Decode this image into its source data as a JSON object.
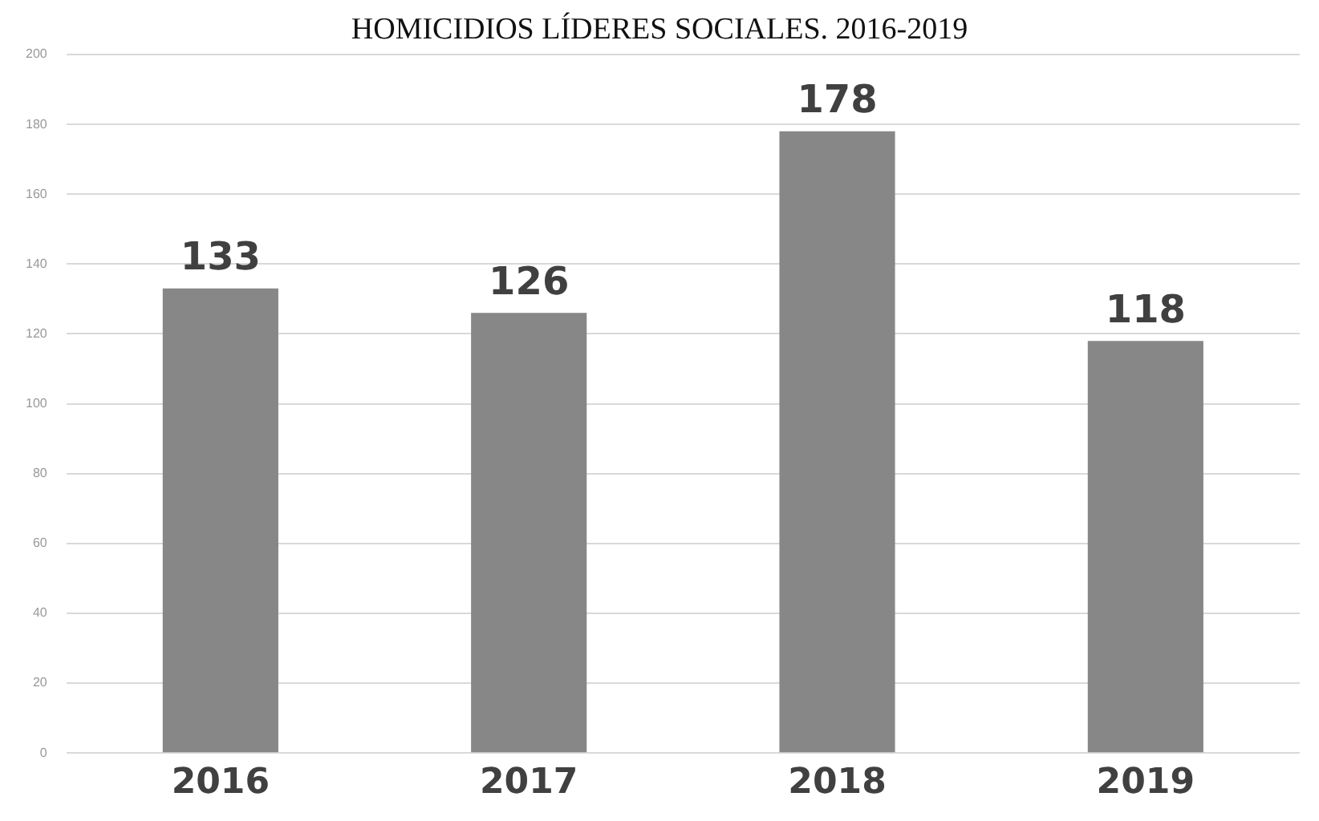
{
  "chart_data": {
    "type": "bar",
    "title": "HOMICIDIOS LÍDERES SOCIALES. 2016-2019",
    "categories": [
      "2016",
      "2017",
      "2018",
      "2019"
    ],
    "values": [
      133,
      126,
      178,
      118
    ],
    "color": "#878787",
    "ylim": [
      0,
      200
    ],
    "yticks": [
      0,
      20,
      40,
      60,
      80,
      100,
      120,
      140,
      160,
      180,
      200
    ],
    "grid": "y",
    "data_labels": true
  }
}
